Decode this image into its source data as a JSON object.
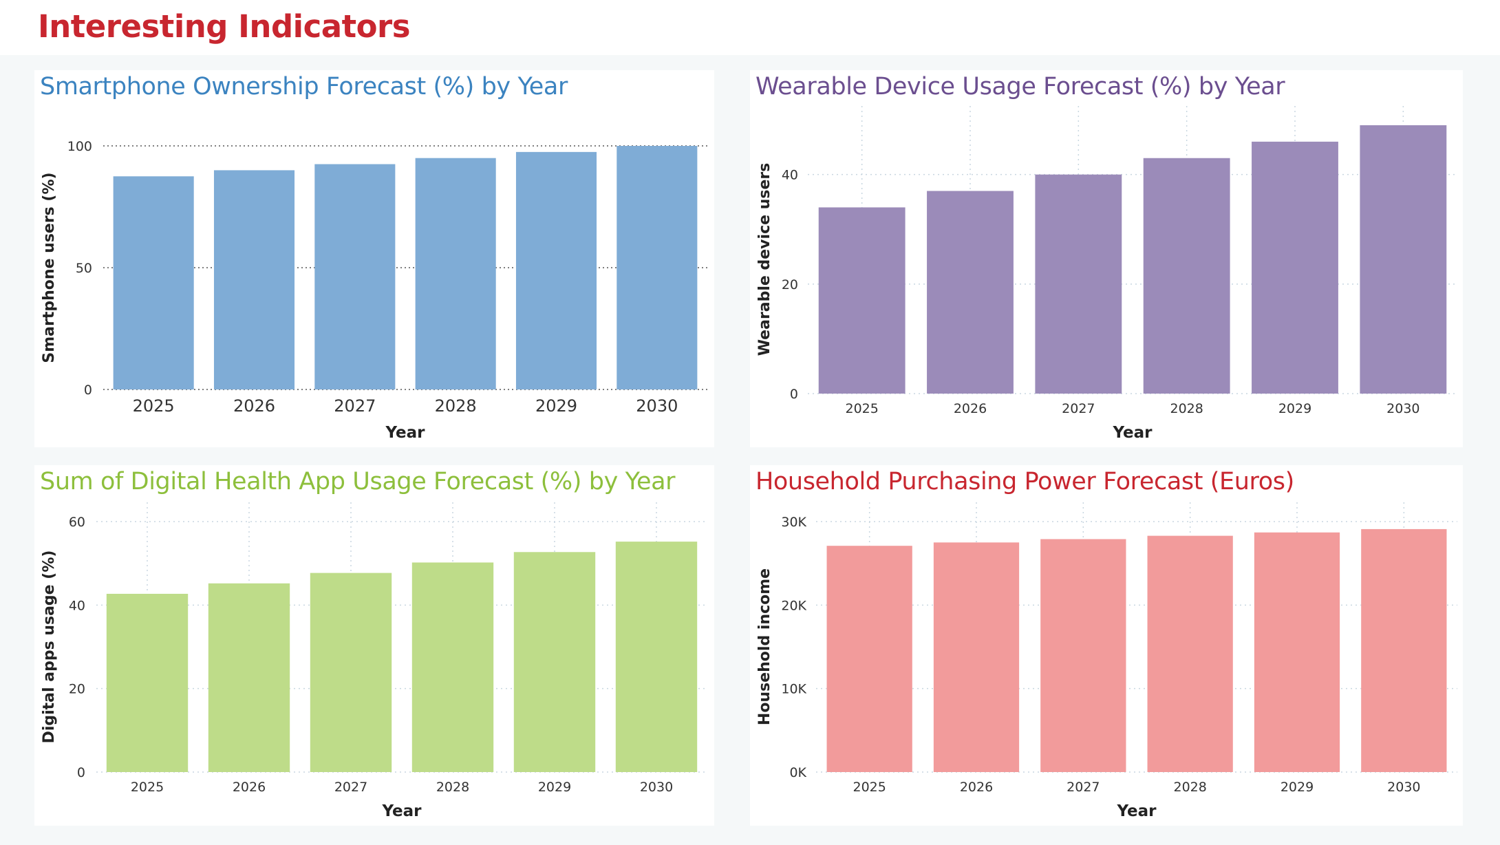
{
  "page": {
    "title": "Interesting Indicators"
  },
  "chart_data": [
    {
      "id": "smartphone",
      "type": "bar",
      "title": "Smartphone Ownership Forecast (%) by Year",
      "title_color": "#3b83c0",
      "bar_color": "#7facd6",
      "xlabel": "Year",
      "ylabel": "Smartphone users (%)",
      "categories": [
        "2025",
        "2026",
        "2027",
        "2028",
        "2029",
        "2030"
      ],
      "values": [
        87.5,
        90,
        92.5,
        95,
        97.5,
        100
      ],
      "ylim": [
        0,
        100
      ],
      "yticks": [
        0,
        50,
        100
      ],
      "ytick_labels": [
        "0",
        "50",
        "100"
      ],
      "grid": "horizontal-dotted"
    },
    {
      "id": "wearable",
      "type": "bar",
      "title": "Wearable Device Usage Forecast (%) by Year",
      "title_color": "#6b4e8f",
      "bar_color": "#9b8bb9",
      "xlabel": "Year",
      "ylabel": "Wearable device users",
      "categories": [
        "2025",
        "2026",
        "2027",
        "2028",
        "2029",
        "2030"
      ],
      "values": [
        34,
        37,
        40,
        43,
        46,
        49
      ],
      "ylim": [
        0,
        49
      ],
      "yticks": [
        0,
        20,
        40
      ],
      "ytick_labels": [
        "0",
        "20",
        "40"
      ],
      "grid": "both-dotted"
    },
    {
      "id": "health",
      "type": "bar",
      "title": "Sum of Digital Health App Usage Forecast (%) by Year",
      "title_color": "#8dbf3c",
      "bar_color": "#bedc89",
      "xlabel": "Year",
      "ylabel": "Digital apps usage (%)",
      "categories": [
        "2025",
        "2026",
        "2027",
        "2028",
        "2029",
        "2030"
      ],
      "values": [
        42.7,
        45.2,
        47.7,
        50.2,
        52.7,
        55.2
      ],
      "ylim": [
        0,
        60
      ],
      "yticks": [
        0,
        20,
        40,
        60
      ],
      "ytick_labels": [
        "0",
        "20",
        "40",
        "60"
      ],
      "grid": "both-dotted"
    },
    {
      "id": "income",
      "type": "bar",
      "title": "Household Purchasing Power Forecast (Euros)",
      "title_color": "#c8262f",
      "bar_color": "#f29b9b",
      "xlabel": "Year",
      "ylabel": "Household income",
      "categories": [
        "2025",
        "2026",
        "2027",
        "2028",
        "2029",
        "2030"
      ],
      "values": [
        27100,
        27500,
        27900,
        28300,
        28700,
        29100
      ],
      "ylim": [
        0,
        30000
      ],
      "yticks": [
        0,
        10000,
        20000,
        30000
      ],
      "ytick_labels": [
        "0K",
        "10K",
        "20K",
        "30K"
      ],
      "grid": "both-dotted"
    }
  ]
}
